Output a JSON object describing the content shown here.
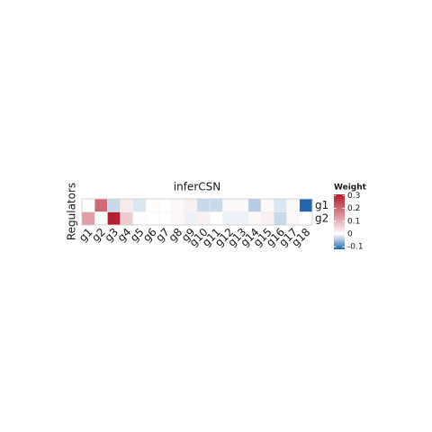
{
  "chart_data": {
    "type": "heatmap",
    "title": "inferCSN",
    "ylabel": "Regulators",
    "legend_title": "Weight",
    "x_categories": [
      "g1",
      "g2",
      "g3",
      "g4",
      "g5",
      "g6",
      "g7",
      "g8",
      "g9",
      "g10",
      "g11",
      "g12",
      "g13",
      "g14",
      "g15",
      "g16",
      "g17",
      "g18"
    ],
    "y_categories": [
      "g1",
      "g2"
    ],
    "values": [
      [
        0,
        0.2,
        -0.03,
        0.03,
        -0.02,
        0,
        0,
        0.01,
        0.02,
        -0.03,
        -0.03,
        0.01,
        0.01,
        -0.04,
        0.01,
        -0.02,
        0.01,
        -0.12
      ],
      [
        0.13,
        0,
        0.3,
        0.07,
        0,
        0,
        0,
        0.01,
        -0.01,
        0.02,
        0,
        -0.01,
        -0.01,
        0.01,
        0.02,
        -0.03,
        0.01,
        0
      ]
    ],
    "colors": [
      "#2166ac",
      "#ffffff",
      "#b2182b"
    ],
    "zlim": [
      -0.12,
      0.31
    ],
    "midpoint": 0,
    "zticks": [
      0.3,
      0.2,
      0.1,
      0,
      -0.1
    ]
  }
}
